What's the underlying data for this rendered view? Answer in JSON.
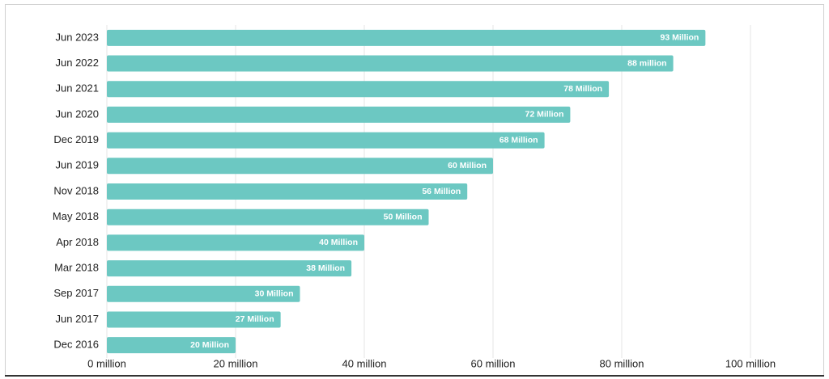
{
  "chart_data": {
    "type": "bar",
    "orientation": "horizontal",
    "categories": [
      "Jun 2023",
      "Jun 2022",
      "Jun 2021",
      "Jun 2020",
      "Dec 2019",
      "Jun 2019",
      "Nov 2018",
      "May 2018",
      "Apr 2018",
      "Mar 2018",
      "Sep 2017",
      "Jun 2017",
      "Dec 2016"
    ],
    "values": [
      93,
      88,
      78,
      72,
      68,
      60,
      56,
      50,
      40,
      38,
      30,
      27,
      20
    ],
    "value_labels": [
      "93 Million",
      "88 million",
      "78 Million",
      "72 Million",
      "68 Million",
      "60 Million",
      "56 Million",
      "50 Million",
      "40 Million",
      "38 Million",
      "30 Million",
      "27 Million",
      "20 Million"
    ],
    "color": "#6cc8c2",
    "xlim": [
      0,
      110
    ],
    "xticks": [
      {
        "value": 0,
        "label": "0 million"
      },
      {
        "value": 20,
        "label": "20 million"
      },
      {
        "value": 40,
        "label": "40 million"
      },
      {
        "value": 60,
        "label": "60 million"
      },
      {
        "value": 80,
        "label": "80 million"
      },
      {
        "value": 100,
        "label": "100 million"
      }
    ],
    "grid": true
  }
}
